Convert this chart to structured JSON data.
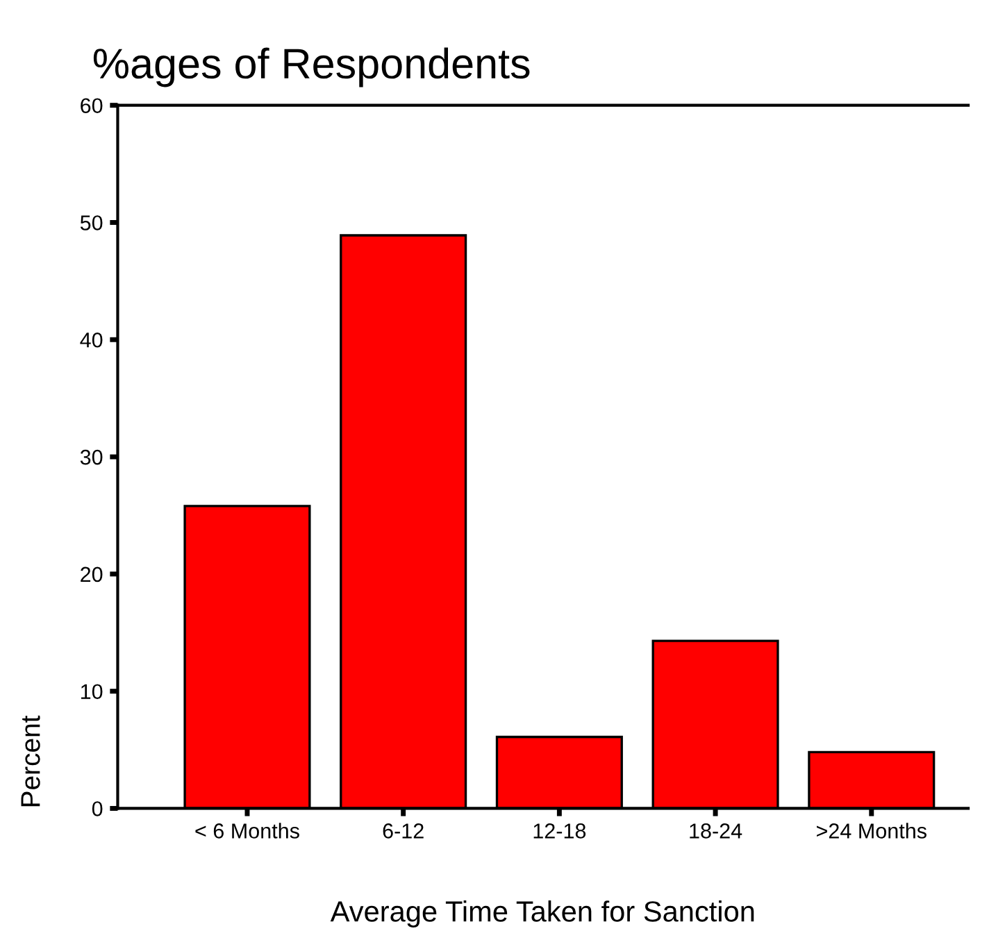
{
  "chart_data": {
    "type": "bar",
    "title": "%ages of Respondents",
    "xlabel": "Average Time Taken for Sanction",
    "ylabel": "Percent",
    "categories": [
      "< 6 Months",
      "6-12",
      "12-18",
      "18-24",
      ">24 Months"
    ],
    "values": [
      25.8,
      48.9,
      6.1,
      14.3,
      4.8
    ],
    "color": "#ff0000",
    "ylim": [
      0,
      60
    ],
    "yticks": [
      0,
      10,
      20,
      30,
      40,
      50,
      60
    ],
    "grid": false
  }
}
